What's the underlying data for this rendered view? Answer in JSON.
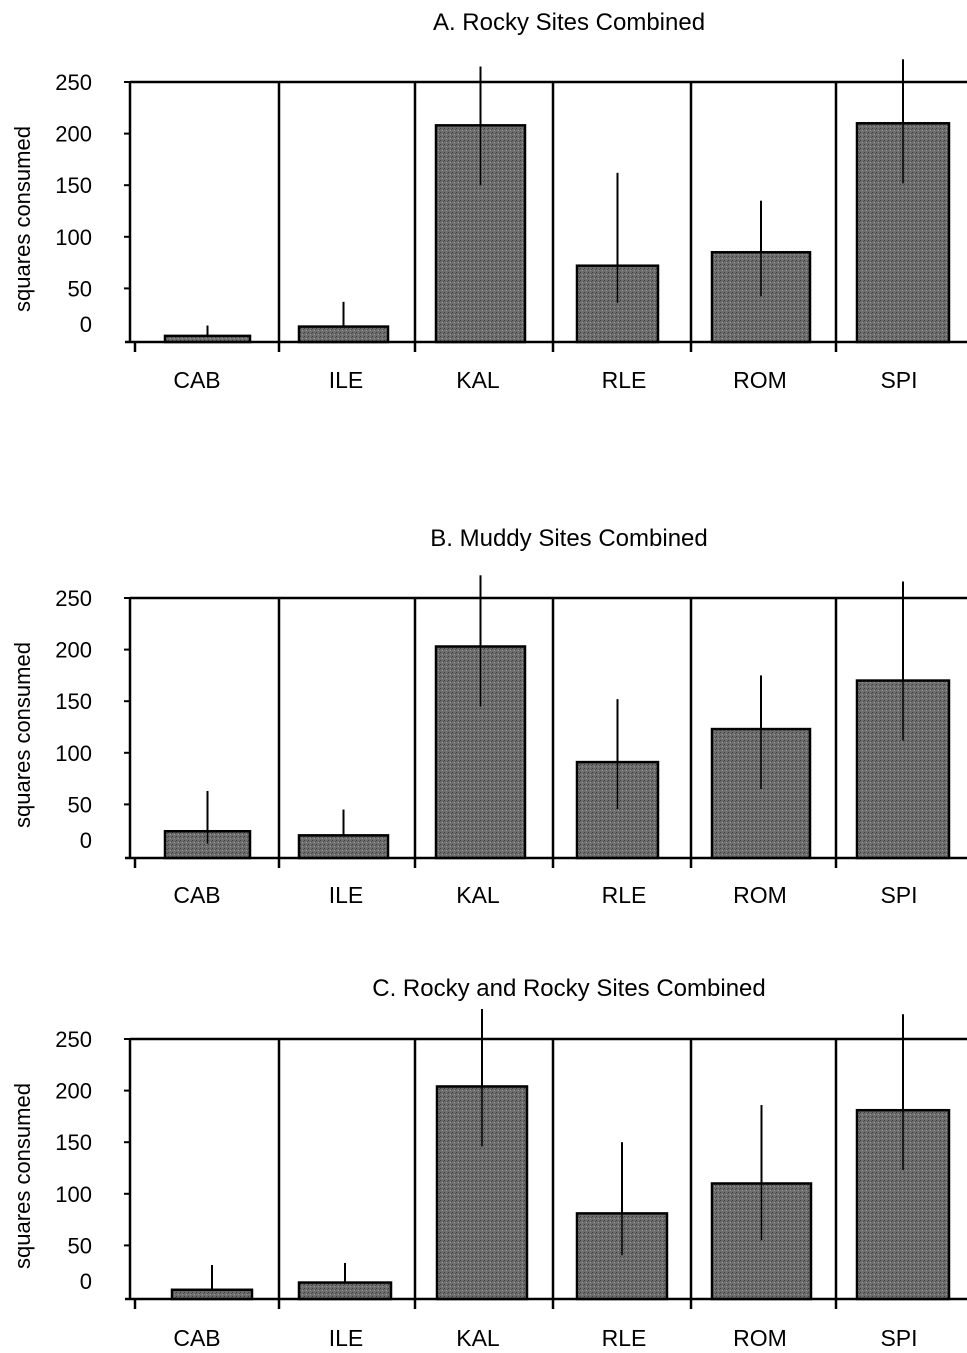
{
  "chart_data": [
    {
      "type": "bar",
      "title": "A.  Rocky Sites Combined",
      "ylabel": "squares consumed",
      "xlabel": "",
      "categories": [
        "CAB",
        "ILE",
        "KAL",
        "RLE",
        "ROM",
        "SPI"
      ],
      "values": [
        4,
        13,
        208,
        72,
        85,
        210
      ],
      "error_upper": [
        14,
        37,
        265,
        162,
        135,
        272
      ],
      "yticks": [
        "250",
        "200",
        "150",
        "100",
        "50",
        "0"
      ],
      "ylim": [
        0,
        250
      ],
      "bar_color": "#6e6e6e"
    },
    {
      "type": "bar",
      "title": "B.  Muddy Sites Combined",
      "ylabel": "squares consumed",
      "xlabel": "",
      "categories": [
        "CAB",
        "ILE",
        "KAL",
        "RLE",
        "ROM",
        "SPI"
      ],
      "values": [
        24,
        20,
        203,
        91,
        123,
        170
      ],
      "error_upper": [
        63,
        45,
        272,
        152,
        175,
        266
      ],
      "yticks": [
        "250",
        "200",
        "150",
        "100",
        "50",
        "0"
      ],
      "ylim": [
        0,
        250
      ],
      "bar_color": "#6e6e6e"
    },
    {
      "type": "bar",
      "title": "C.  Rocky and Rocky Sites Combined",
      "ylabel": "squares consumed",
      "xlabel": "",
      "categories": [
        "CAB",
        "ILE",
        "KAL",
        "RLE",
        "ROM",
        "SPI"
      ],
      "values": [
        7,
        14,
        204,
        81,
        110,
        181
      ],
      "error_upper": [
        31,
        33,
        280,
        150,
        186,
        274
      ],
      "yticks": [
        "250",
        "200",
        "150",
        "100",
        "50",
        "0"
      ],
      "ylim": [
        0,
        250
      ],
      "bar_color": "#6e6e6e"
    }
  ]
}
